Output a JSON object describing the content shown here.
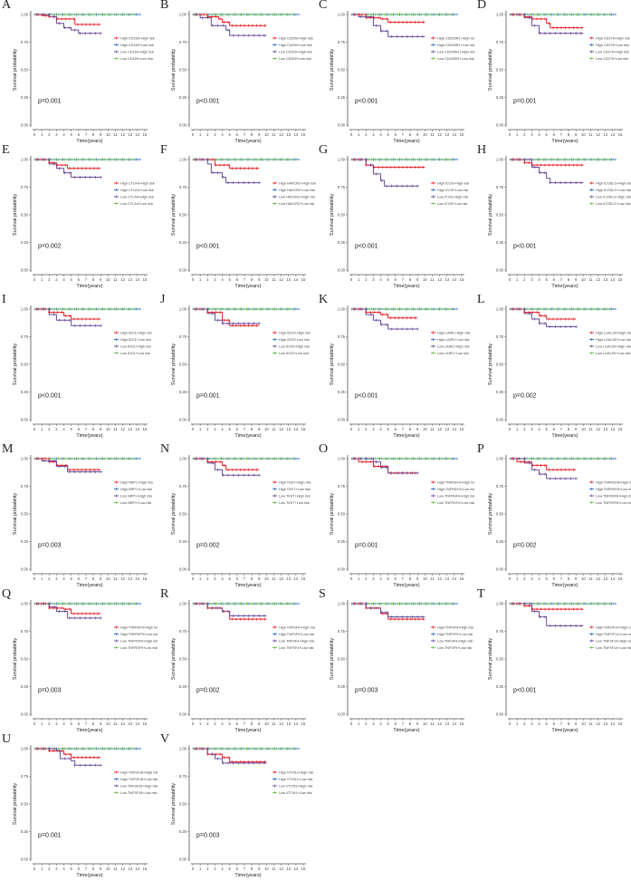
{
  "chart_data": {
    "type": "line",
    "subtype": "kaplan-meier",
    "xlabel": "Time(years)",
    "ylabel": "Survival probability",
    "xlim": [
      0,
      15
    ],
    "ylim": [
      0,
      1
    ],
    "xticks": [
      "0",
      "1",
      "2",
      "3",
      "4",
      "5",
      "6",
      "7",
      "8",
      "9",
      "10",
      "11",
      "12",
      "13",
      "14",
      "15"
    ],
    "yticks": [
      "0.00",
      "0.25",
      "0.50",
      "0.75",
      "1.00"
    ],
    "series_colors": {
      "high_high": "#e8232a",
      "high_low": "#2f6fc4",
      "low_high": "#6a4c9c",
      "low_low": "#6cc04a"
    },
    "panels": [
      {
        "letter": "A",
        "gene": "CD160",
        "p": "p=0.001",
        "legend": [
          "High CD160+High risk",
          "High CD160+Low risk",
          "Low CD160+High risk",
          "Low CD160+Low risk"
        ],
        "red": [
          [
            0,
            1
          ],
          [
            1,
            0.99
          ],
          [
            2,
            0.98
          ],
          [
            3,
            0.96
          ],
          [
            5.5,
            0.91
          ]
        ],
        "red_end": 9,
        "purple": [
          [
            0,
            1
          ],
          [
            2,
            0.98
          ],
          [
            3,
            0.92
          ],
          [
            4,
            0.88
          ],
          [
            5,
            0.86
          ],
          [
            6,
            0.83
          ]
        ],
        "purple_end": 9
      },
      {
        "letter": "B",
        "gene": "CD200",
        "p": "p<0.001",
        "legend": [
          "High CD200+High risk",
          "High CD200+Low risk",
          "Low CD200+High risk",
          "Low CD200+Low risk"
        ],
        "red": [
          [
            0,
            1
          ],
          [
            2,
            0.98
          ],
          [
            3.5,
            0.96
          ],
          [
            4,
            0.93
          ],
          [
            5,
            0.9
          ]
        ],
        "red_end": 10,
        "purple": [
          [
            0,
            1
          ],
          [
            1,
            0.97
          ],
          [
            2.5,
            0.9
          ],
          [
            4.5,
            0.86
          ],
          [
            5,
            0.81
          ]
        ],
        "purple_end": 10
      },
      {
        "letter": "C",
        "gene": "CD200R1",
        "p": "p<0.001",
        "legend": [
          "High CD200R1+High risk",
          "High CD200R1+Low risk",
          "Low CD200R1+High risk",
          "Low CD200R1+Low risk"
        ],
        "red": [
          [
            0,
            1
          ],
          [
            2,
            0.97
          ],
          [
            4,
            0.96
          ],
          [
            5,
            0.93
          ]
        ],
        "red_end": 10,
        "purple": [
          [
            0,
            1
          ],
          [
            1,
            0.98
          ],
          [
            3,
            0.9
          ],
          [
            4,
            0.85
          ],
          [
            5,
            0.8
          ]
        ],
        "purple_end": 10
      },
      {
        "letter": "D",
        "gene": "CD276",
        "p": "p=0.001",
        "legend": [
          "High CD276+High risk",
          "High CD276+Low risk",
          "Low CD276+High risk",
          "Low CD276+Low risk"
        ],
        "red": [
          [
            0,
            1
          ],
          [
            2,
            0.98
          ],
          [
            3,
            0.96
          ],
          [
            5,
            0.92
          ],
          [
            5.5,
            0.88
          ]
        ],
        "red_end": 10,
        "purple": [
          [
            0,
            1
          ],
          [
            2,
            0.97
          ],
          [
            3,
            0.9
          ],
          [
            4,
            0.83
          ]
        ],
        "purple_end": 10
      },
      {
        "letter": "E",
        "gene": "CTLA4",
        "p": "p=0.002",
        "legend": [
          "High CTLA4+High risk",
          "High CTLA4+Low risk",
          "Low CTLA4+High risk",
          "Low CTLA4+Low risk"
        ],
        "red": [
          [
            0,
            1
          ],
          [
            2,
            0.97
          ],
          [
            3,
            0.95
          ],
          [
            4.5,
            0.92
          ]
        ],
        "red_end": 9,
        "purple": [
          [
            0,
            1
          ],
          [
            2,
            0.96
          ],
          [
            3,
            0.92
          ],
          [
            4,
            0.88
          ],
          [
            5,
            0.84
          ]
        ],
        "purple_end": 9
      },
      {
        "letter": "F",
        "gene": "HAVCR2",
        "p": "p<0.001",
        "legend": [
          "High HAVCR2+High risk",
          "High HAVCR2+Low risk",
          "Low HAVCR2+High risk",
          "Low HAVCR2+Low risk"
        ],
        "red": [
          [
            0,
            1
          ],
          [
            3,
            0.95
          ],
          [
            5,
            0.92
          ]
        ],
        "red_end": 9,
        "purple": [
          [
            0,
            1
          ],
          [
            2,
            0.96
          ],
          [
            2.5,
            0.88
          ],
          [
            4,
            0.84
          ],
          [
            4.5,
            0.79
          ]
        ],
        "purple_end": 9
      },
      {
        "letter": "G",
        "gene": "ICOS",
        "p": "p<0.001",
        "legend": [
          "High ICOS+High risk",
          "High ICOS+Low risk",
          "Low ICOS+High risk",
          "Low ICOS+Low risk"
        ],
        "red": [
          [
            0,
            1
          ],
          [
            2,
            0.95
          ],
          [
            3,
            0.93
          ]
        ],
        "red_end": 10,
        "purple": [
          [
            0,
            1
          ],
          [
            2,
            0.95
          ],
          [
            3,
            0.87
          ],
          [
            4,
            0.81
          ],
          [
            4.5,
            0.76
          ]
        ],
        "purple_end": 9
      },
      {
        "letter": "H",
        "gene": "ICOSLG",
        "p": "p<0.001",
        "legend": [
          "High ICOSLG+High risk",
          "High ICOSLG+Low risk",
          "Low ICOSLG+High risk",
          "Low ICOSLG+Low risk"
        ],
        "red": [
          [
            0,
            1
          ],
          [
            2,
            0.97
          ],
          [
            3,
            0.95
          ]
        ],
        "red_end": 10,
        "purple": [
          [
            0,
            1
          ],
          [
            3,
            0.93
          ],
          [
            4,
            0.88
          ],
          [
            5,
            0.83
          ],
          [
            5.5,
            0.79
          ]
        ],
        "purple_end": 10
      },
      {
        "letter": "I",
        "gene": "IDO1",
        "p": "p<0.001",
        "legend": [
          "High IDO1+High risk",
          "High IDO1+Low risk",
          "Low IDO1+High risk",
          "Low IDO1+Low risk"
        ],
        "red": [
          [
            0,
            1
          ],
          [
            2,
            0.97
          ],
          [
            4,
            0.94
          ],
          [
            5,
            0.91
          ]
        ],
        "red_end": 9,
        "purple": [
          [
            0,
            1
          ],
          [
            2,
            0.95
          ],
          [
            3,
            0.9
          ],
          [
            5,
            0.85
          ]
        ],
        "purple_end": 9
      },
      {
        "letter": "J",
        "gene": "IDO2",
        "p": "p=0.001",
        "legend": [
          "High IDO2+High risk",
          "High IDO2+Low risk",
          "Low IDO2+High risk",
          "Low IDO2+Low risk"
        ],
        "red": [
          [
            0,
            1
          ],
          [
            2,
            0.97
          ],
          [
            4,
            0.9
          ],
          [
            5,
            0.85
          ]
        ],
        "red_end": 9,
        "purple": [
          [
            0,
            1
          ],
          [
            2,
            0.96
          ],
          [
            3,
            0.9
          ],
          [
            4,
            0.87
          ]
        ],
        "purple_end": 9
      },
      {
        "letter": "K",
        "gene": "LAIR1",
        "p": "p<0.001",
        "legend": [
          "High LAIR1+High risk",
          "High LAIR1+Low risk",
          "Low LAIR1+High risk",
          "Low LAIR1+Low risk"
        ],
        "red": [
          [
            0,
            1
          ],
          [
            2,
            0.97
          ],
          [
            4,
            0.95
          ],
          [
            5,
            0.92
          ]
        ],
        "red_end": 9,
        "purple": [
          [
            0,
            1
          ],
          [
            2,
            0.95
          ],
          [
            3,
            0.9
          ],
          [
            4,
            0.86
          ],
          [
            5,
            0.82
          ]
        ],
        "purple_end": 9
      },
      {
        "letter": "L",
        "gene": "LGALS9",
        "p": "p=0.002",
        "legend": [
          "High LGALS9+High risk",
          "High LGALS9+Low risk",
          "Low LGALS9+High risk",
          "Low LGALS9+Low risk"
        ],
        "red": [
          [
            0,
            1
          ],
          [
            2,
            0.97
          ],
          [
            4,
            0.94
          ],
          [
            5,
            0.91
          ]
        ],
        "red_end": 9,
        "purple": [
          [
            0,
            1
          ],
          [
            2,
            0.96
          ],
          [
            3,
            0.91
          ],
          [
            4,
            0.87
          ],
          [
            5,
            0.84
          ]
        ],
        "purple_end": 9
      },
      {
        "letter": "M",
        "gene": "NRP1",
        "p": "p=0.003",
        "legend": [
          "High NRP1+High risk",
          "High NRP1+Low risk",
          "Low NRP1+High risk",
          "Low NRP1+Low risk"
        ],
        "red": [
          [
            0,
            1
          ],
          [
            2,
            0.97
          ],
          [
            3,
            0.94
          ],
          [
            4.5,
            0.9
          ]
        ],
        "red_end": 9,
        "purple": [
          [
            0,
            1
          ],
          [
            1,
            0.98
          ],
          [
            3,
            0.93
          ],
          [
            4.5,
            0.88
          ]
        ],
        "purple_end": 9
      },
      {
        "letter": "N",
        "gene": "TIGIT",
        "p": "p=0.002",
        "legend": [
          "High TIGIT+High risk",
          "High TIGIT+Low risk",
          "Low TIGIT+High risk",
          "Low TIGIT+Low risk"
        ],
        "red": [
          [
            0,
            1
          ],
          [
            2,
            0.97
          ],
          [
            4,
            0.94
          ],
          [
            4.5,
            0.9
          ]
        ],
        "red_end": 9,
        "purple": [
          [
            0,
            1
          ],
          [
            2,
            0.96
          ],
          [
            3,
            0.9
          ],
          [
            4,
            0.85
          ]
        ],
        "purple_end": 9
      },
      {
        "letter": "O",
        "gene": "TNFRSF4",
        "p": "p=0.001",
        "legend": [
          "High TNFRSF4+High risk",
          "High TNFRSF4+Low risk",
          "Low TNFRSF4+High risk",
          "Low TNFRSF4+Low risk"
        ],
        "red": [
          [
            0,
            1
          ],
          [
            1,
            0.97
          ],
          [
            3,
            0.93
          ],
          [
            5,
            0.87
          ]
        ],
        "red_end": 9,
        "purple": [
          [
            0,
            1
          ],
          [
            3,
            0.97
          ],
          [
            4,
            0.92
          ],
          [
            5,
            0.87
          ]
        ],
        "purple_end": 9
      },
      {
        "letter": "P",
        "gene": "TNFRSF8",
        "p": "p=0.002",
        "legend": [
          "High TNFRSF8+High risk",
          "High TNFRSF8+Low risk",
          "Low TNFRSF8+High risk",
          "Low TNFRSF8+Low risk"
        ],
        "red": [
          [
            0,
            1
          ],
          [
            1,
            0.97
          ],
          [
            3,
            0.94
          ],
          [
            5,
            0.9
          ]
        ],
        "red_end": 9,
        "purple": [
          [
            0,
            1
          ],
          [
            2,
            0.96
          ],
          [
            3,
            0.9
          ],
          [
            4,
            0.86
          ],
          [
            5,
            0.82
          ]
        ],
        "purple_end": 9
      },
      {
        "letter": "Q",
        "gene": "TNFRSF9",
        "p": "p=0.003",
        "legend": [
          "High TNFRSF9+High risk",
          "High TNFRSF9+Low risk",
          "Low TNFRSF9+High risk",
          "Low TNFRSF9+Low risk"
        ],
        "red": [
          [
            0,
            1
          ],
          [
            2,
            0.96
          ],
          [
            4,
            0.95
          ],
          [
            5,
            0.91
          ]
        ],
        "red_end": 9,
        "purple": [
          [
            0,
            1
          ],
          [
            2,
            0.97
          ],
          [
            3,
            0.93
          ],
          [
            4.5,
            0.87
          ]
        ],
        "purple_end": 9
      },
      {
        "letter": "R",
        "gene": "TNFSF4",
        "p": "p=0.002",
        "legend": [
          "High TNFSF4+High risk",
          "High TNFSF4+Low risk",
          "Low TNFSF4+High risk",
          "Low TNFSF4+Low risk"
        ],
        "red": [
          [
            0,
            1
          ],
          [
            2,
            0.96
          ],
          [
            4,
            0.93
          ],
          [
            5,
            0.86
          ]
        ],
        "red_end": 10,
        "purple": [
          [
            0,
            1
          ],
          [
            2,
            0.96
          ],
          [
            4,
            0.93
          ],
          [
            5,
            0.89
          ]
        ],
        "purple_end": 10
      },
      {
        "letter": "S",
        "gene": "TNFSF9",
        "p": "p=0.003",
        "legend": [
          "High TNFSF9+High risk",
          "High TNFSF9+Low risk",
          "Low TNFSF9+High risk",
          "Low TNFSF9+Low risk"
        ],
        "red": [
          [
            0,
            1
          ],
          [
            2,
            0.96
          ],
          [
            4,
            0.91
          ],
          [
            5,
            0.86
          ]
        ],
        "red_end": 10,
        "purple": [
          [
            0,
            1
          ],
          [
            2,
            0.96
          ],
          [
            4,
            0.92
          ],
          [
            5,
            0.88
          ]
        ],
        "purple_end": 10
      },
      {
        "letter": "T",
        "gene": "TNFSF14",
        "p": "p<0.001",
        "legend": [
          "High TNFSF14+High risk",
          "High TNFSF14+Low risk",
          "Low TNFSF14+High risk",
          "Low TNFSF14+Low risk"
        ],
        "red": [
          [
            0,
            1
          ],
          [
            2,
            0.98
          ],
          [
            3,
            0.95
          ]
        ],
        "red_end": 10,
        "purple": [
          [
            0,
            1
          ],
          [
            3,
            0.93
          ],
          [
            4,
            0.88
          ],
          [
            5,
            0.8
          ]
        ],
        "purple_end": 10
      },
      {
        "letter": "U",
        "gene": "TNFSF18",
        "p": "p=0.001",
        "legend": [
          "High TNFSF18+High risk",
          "High TNFSF18+Low risk",
          "Low TNFSF18+High risk",
          "Low TNFSF18+Low risk"
        ],
        "red": [
          [
            0,
            1
          ],
          [
            2,
            0.98
          ],
          [
            4,
            0.95
          ],
          [
            5,
            0.92
          ]
        ],
        "red_end": 9,
        "purple": [
          [
            0,
            1
          ],
          [
            3,
            0.98
          ],
          [
            3.5,
            0.91
          ],
          [
            5,
            0.89
          ],
          [
            5.5,
            0.85
          ]
        ],
        "purple_end": 9
      },
      {
        "letter": "V",
        "gene": "VTCN1",
        "p": "p=0.003",
        "legend": [
          "High VTCN1+High risk",
          "High VTCN1+Low risk",
          "Low VTCN1+High risk",
          "Low VTCN1+Low risk"
        ],
        "red": [
          [
            0,
            1
          ],
          [
            2,
            0.95
          ],
          [
            4,
            0.92
          ],
          [
            5,
            0.88
          ]
        ],
        "red_end": 10,
        "purple": [
          [
            0,
            1
          ],
          [
            2,
            0.95
          ],
          [
            3,
            0.91
          ],
          [
            4,
            0.87
          ]
        ],
        "purple_end": 10
      }
    ]
  }
}
